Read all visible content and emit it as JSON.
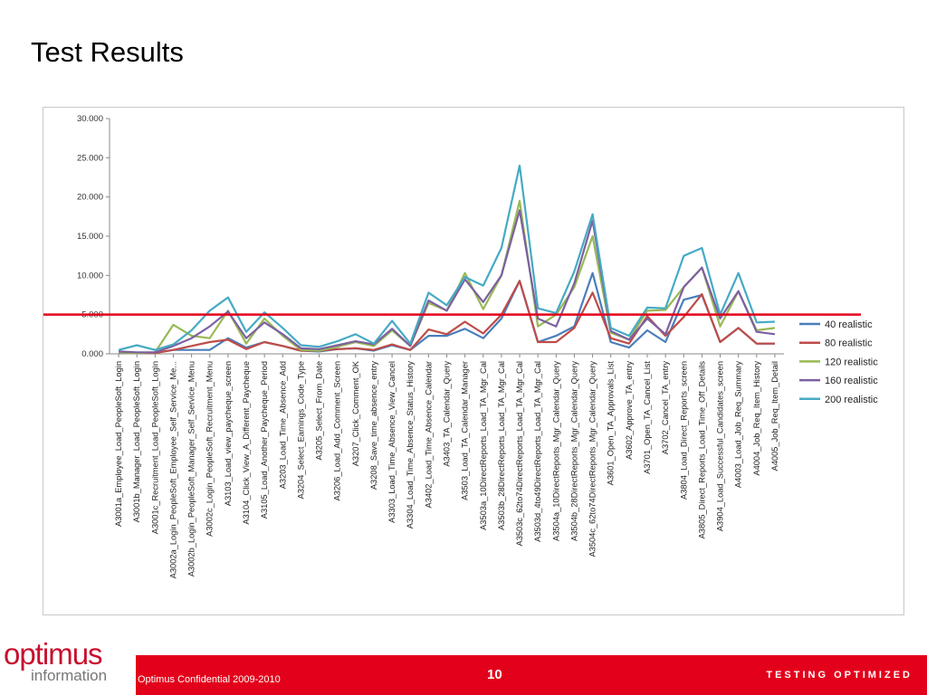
{
  "slide": {
    "title": "Test Results",
    "footer_confidential": "Optimus Confidential 2009-2010",
    "page_number": "10",
    "tagline": "TESTING OPTIMIZED",
    "logo_main": "optimus",
    "logo_sub": "information",
    "accent_color": "#e3001b"
  },
  "chart_data": {
    "type": "line",
    "ylim": [
      0,
      30000
    ],
    "yticks": [
      0,
      5000,
      10000,
      15000,
      20000,
      25000,
      30000
    ],
    "ytick_labels": [
      "0.000",
      "5.000",
      "10.000",
      "15.000",
      "20.000",
      "25.000",
      "30.000"
    ],
    "threshold": {
      "value": 5000,
      "color": "#e3001b"
    },
    "grid": false,
    "legend_position": "right",
    "categories": [
      "A3001a_Employee_Load_PeopleSoft_Login",
      "A3001b_Manager_Load_PeopleSoft_Login",
      "A3001c_Recruitment_Load_PeopleSoft_Login",
      "A3002a_Login_PeopleSoft_Employee_Self_Service_Me...",
      "A3002b_Login_PeopleSoft_Manager_Self_Service_Menu",
      "A3002c_Login_PeopleSoft_Recruitment_Menu",
      "A3103_Load_view_paycheque_screen",
      "A3104_Click_View_A_Different_Paycheque",
      "A3105_Load_Another_Paycheque_Period",
      "A3203_Load_Time_Absence_Add",
      "A3204_Select_Earnings_Code_Type",
      "A3205_Select_From_Date",
      "A3206_Load_Add_Comment_Screen",
      "A3207_Click_Comment_OK",
      "A3208_Save_time_absence_entry",
      "A3303_Load_Time_Absence_View_Cancel",
      "A3304_Load_Time_Absence_Status_History",
      "A3402_Load_Time_Absence_Calendar",
      "A3403_TA_Calendar_Query",
      "A3503_Load_TA_Calendar_Manager",
      "A3503a_10DirectReports_Load_TA_Mgr_Cal",
      "A3503b_28DirectReports_Load_TA_Mgr_Cal",
      "A3503c_62to74DirectReports_Load_TA_Mgr_Cal",
      "A3503d_4to49DirectReports_Load_TA_Mgr_Cal",
      "A3504a_10DirectReports_Mgr_Calendar_Query",
      "A3504b_28DirectReports_Mgr_Calendar_Query",
      "A3504c_62to74DirectReports_Mgr_Calendar_Query",
      "A3601_Open_TA_Approvals_List",
      "A3602_Approve_TA_entry",
      "A3701_Open_TA_Cancel_List",
      "A3702_Cancel_TA_entry",
      "A3804_Load_Direct_Reports_screen",
      "A3805_Direct_Reports_Load_Time_Off_Details",
      "A3904_Load_Successful_Candidates_screen",
      "A4003_Load_Job_Req_Summary",
      "A4004_Job_Req_Item_History",
      "A4005_Job_Req_Item_Detail"
    ],
    "series": [
      {
        "name": "40 realistic",
        "color": "#4a7ebb",
        "values": [
          300,
          100,
          100,
          500,
          500,
          500,
          2000,
          800,
          1500,
          1000,
          400,
          300,
          600,
          700,
          400,
          1100,
          500,
          2300,
          2300,
          3200,
          2000,
          4500,
          9300,
          1500,
          2300,
          3500,
          10300,
          1500,
          800,
          3000,
          1500,
          6900,
          7500,
          1500,
          3300,
          1300,
          1300
        ]
      },
      {
        "name": "80 realistic",
        "color": "#be4b48",
        "values": [
          200,
          100,
          100,
          500,
          1000,
          1500,
          1800,
          600,
          1500,
          1000,
          400,
          400,
          600,
          700,
          500,
          1200,
          500,
          3100,
          2500,
          4100,
          2600,
          5000,
          9300,
          1500,
          1500,
          3300,
          7800,
          2000,
          1300,
          4800,
          2300,
          4700,
          7600,
          1500,
          3300,
          1300,
          1300
        ]
      },
      {
        "name": "120 realistic",
        "color": "#98b954",
        "values": [
          200,
          100,
          200,
          3700,
          2300,
          2000,
          5500,
          1300,
          4500,
          2300,
          500,
          400,
          900,
          1500,
          1000,
          3000,
          1000,
          6500,
          5500,
          10300,
          5700,
          10000,
          19500,
          3500,
          5000,
          8500,
          15000,
          2700,
          1800,
          5500,
          5600,
          8500,
          11000,
          3500,
          8000,
          3000,
          3300
        ]
      },
      {
        "name": "160 realistic",
        "color": "#7d60a0",
        "values": [
          300,
          200,
          200,
          1000,
          2000,
          3500,
          5400,
          2000,
          4000,
          2500,
          700,
          600,
          1100,
          1600,
          1200,
          3200,
          1000,
          6800,
          5500,
          9500,
          6600,
          10000,
          18300,
          4500,
          3500,
          9000,
          17000,
          2900,
          1800,
          4500,
          2500,
          8500,
          11000,
          4500,
          8000,
          2800,
          2500
        ]
      },
      {
        "name": "200 realistic",
        "color": "#46aac4",
        "values": [
          500,
          1100,
          500,
          1200,
          3000,
          5500,
          7200,
          2800,
          5300,
          3300,
          1100,
          900,
          1600,
          2500,
          1300,
          4200,
          1300,
          7800,
          6200,
          9800,
          8700,
          13500,
          24000,
          5800,
          5200,
          10500,
          17800,
          3300,
          2300,
          5900,
          5800,
          12500,
          13500,
          5000,
          10300,
          4000,
          4100
        ]
      }
    ]
  }
}
